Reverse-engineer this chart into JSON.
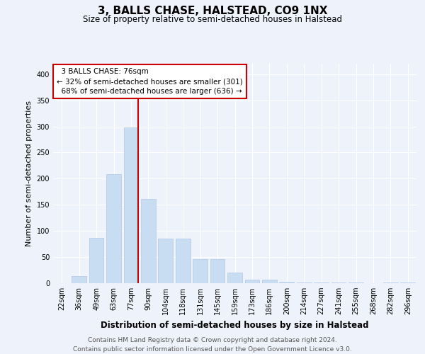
{
  "title": "3, BALLS CHASE, HALSTEAD, CO9 1NX",
  "subtitle": "Size of property relative to semi-detached houses in Halstead",
  "xlabel": "Distribution of semi-detached houses by size in Halstead",
  "ylabel": "Number of semi-detached properties",
  "footer_line1": "Contains HM Land Registry data © Crown copyright and database right 2024.",
  "footer_line2": "Contains public sector information licensed under the Open Government Licence v3.0.",
  "bar_color": "#c9ddf2",
  "bar_edge_color": "#b0c8e8",
  "background_color": "#eef2fb",
  "grid_color": "#ffffff",
  "annotation_box_color": "#ffffff",
  "annotation_border_color": "#cc0000",
  "vline_color": "#cc0000",
  "categories": [
    "22sqm",
    "36sqm",
    "49sqm",
    "63sqm",
    "77sqm",
    "90sqm",
    "104sqm",
    "118sqm",
    "131sqm",
    "145sqm",
    "159sqm",
    "173sqm",
    "186sqm",
    "200sqm",
    "214sqm",
    "227sqm",
    "241sqm",
    "255sqm",
    "268sqm",
    "282sqm",
    "296sqm"
  ],
  "values": [
    0,
    13,
    87,
    208,
    298,
    161,
    86,
    85,
    46,
    46,
    21,
    7,
    7,
    3,
    2,
    2,
    1,
    1,
    0,
    1,
    2
  ],
  "ylim": [
    0,
    420
  ],
  "yticks": [
    0,
    50,
    100,
    150,
    200,
    250,
    300,
    350,
    400
  ],
  "property_label": "3 BALLS CHASE: 76sqm",
  "pct_smaller": 32,
  "count_smaller": 301,
  "pct_larger": 68,
  "count_larger": 636,
  "vline_x_index": 4,
  "title_fontsize": 11,
  "subtitle_fontsize": 8.5,
  "ylabel_fontsize": 8,
  "xlabel_fontsize": 8.5,
  "tick_fontsize": 7,
  "annotation_fontsize": 7.5,
  "footer_fontsize": 6.5
}
